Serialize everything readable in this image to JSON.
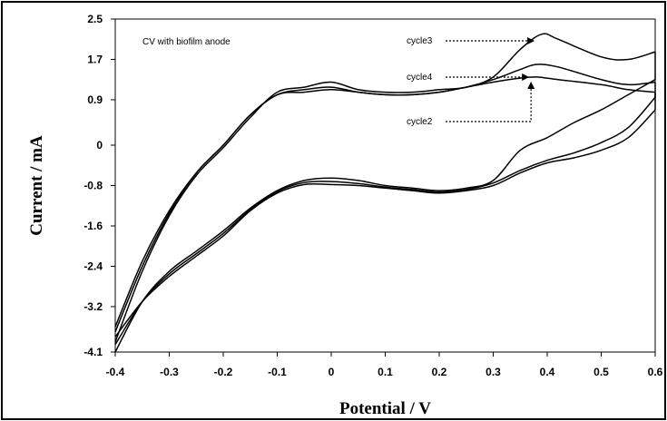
{
  "chart_data": {
    "type": "line",
    "title": "CV with biofilm anode",
    "xlabel": "Potential / V",
    "ylabel": "Current / mA",
    "xlim": [
      -0.4,
      0.6
    ],
    "ylim": [
      -4.1,
      2.5
    ],
    "x_ticks": [
      "-0.4",
      "-0.3",
      "-0.2",
      "-0.1",
      "0",
      "0.1",
      "0.2",
      "0.3",
      "0.4",
      "0.5",
      "0.6"
    ],
    "y_ticks": [
      "2.5",
      "1.7",
      "0.9",
      "0",
      "-0.8",
      "-1.6",
      "-2.4",
      "-3.2",
      "-4.1"
    ],
    "grid": false,
    "series": [
      {
        "name": "cycle2",
        "forward": [
          [
            -0.4,
            -3.6
          ],
          [
            -0.35,
            -2.3
          ],
          [
            -0.3,
            -1.3
          ],
          [
            -0.25,
            -0.55
          ],
          [
            -0.2,
            0.0
          ],
          [
            -0.15,
            0.6
          ],
          [
            -0.1,
            1.0
          ],
          [
            -0.05,
            1.05
          ],
          [
            0.0,
            1.1
          ],
          [
            0.05,
            1.05
          ],
          [
            0.1,
            1.0
          ],
          [
            0.15,
            1.0
          ],
          [
            0.2,
            1.05
          ],
          [
            0.25,
            1.15
          ],
          [
            0.3,
            1.25
          ],
          [
            0.35,
            1.33
          ],
          [
            0.38,
            1.35
          ],
          [
            0.42,
            1.3
          ],
          [
            0.5,
            1.2
          ],
          [
            0.55,
            1.1
          ],
          [
            0.6,
            1.05
          ]
        ],
        "reverse": [
          [
            0.6,
            0.7
          ],
          [
            0.55,
            0.15
          ],
          [
            0.5,
            -0.1
          ],
          [
            0.45,
            -0.25
          ],
          [
            0.4,
            -0.35
          ],
          [
            0.35,
            -0.55
          ],
          [
            0.3,
            -0.8
          ],
          [
            0.25,
            -0.9
          ],
          [
            0.2,
            -0.95
          ],
          [
            0.15,
            -0.9
          ],
          [
            0.1,
            -0.85
          ],
          [
            0.05,
            -0.8
          ],
          [
            0.0,
            -0.78
          ],
          [
            -0.05,
            -0.78
          ],
          [
            -0.1,
            -0.95
          ],
          [
            -0.15,
            -1.3
          ],
          [
            -0.2,
            -1.8
          ],
          [
            -0.25,
            -2.2
          ],
          [
            -0.3,
            -2.6
          ],
          [
            -0.35,
            -3.1
          ],
          [
            -0.4,
            -3.8
          ]
        ]
      },
      {
        "name": "cycle3",
        "forward": [
          [
            -0.4,
            -3.9
          ],
          [
            -0.35,
            -2.5
          ],
          [
            -0.3,
            -1.4
          ],
          [
            -0.25,
            -0.6
          ],
          [
            -0.2,
            -0.05
          ],
          [
            -0.15,
            0.55
          ],
          [
            -0.1,
            1.05
          ],
          [
            -0.05,
            1.15
          ],
          [
            0.0,
            1.25
          ],
          [
            0.05,
            1.1
          ],
          [
            0.1,
            1.05
          ],
          [
            0.15,
            1.05
          ],
          [
            0.2,
            1.1
          ],
          [
            0.25,
            1.15
          ],
          [
            0.3,
            1.35
          ],
          [
            0.35,
            1.9
          ],
          [
            0.39,
            2.2
          ],
          [
            0.42,
            2.1
          ],
          [
            0.5,
            1.75
          ],
          [
            0.55,
            1.7
          ],
          [
            0.6,
            1.85
          ]
        ],
        "reverse": [
          [
            0.6,
            1.3
          ],
          [
            0.55,
            1.0
          ],
          [
            0.5,
            0.7
          ],
          [
            0.45,
            0.45
          ],
          [
            0.4,
            0.15
          ],
          [
            0.35,
            -0.1
          ],
          [
            0.3,
            -0.7
          ],
          [
            0.25,
            -0.85
          ],
          [
            0.2,
            -0.9
          ],
          [
            0.15,
            -0.85
          ],
          [
            0.1,
            -0.8
          ],
          [
            0.05,
            -0.7
          ],
          [
            0.0,
            -0.65
          ],
          [
            -0.05,
            -0.7
          ],
          [
            -0.1,
            -0.9
          ],
          [
            -0.15,
            -1.25
          ],
          [
            -0.2,
            -1.7
          ],
          [
            -0.25,
            -2.1
          ],
          [
            -0.3,
            -2.5
          ],
          [
            -0.35,
            -3.1
          ],
          [
            -0.4,
            -4.1
          ]
        ]
      },
      {
        "name": "cycle4",
        "forward": [
          [
            -0.4,
            -3.7
          ],
          [
            -0.35,
            -2.4
          ],
          [
            -0.3,
            -1.35
          ],
          [
            -0.25,
            -0.55
          ],
          [
            -0.2,
            0.0
          ],
          [
            -0.15,
            0.6
          ],
          [
            -0.1,
            1.0
          ],
          [
            -0.05,
            1.1
          ],
          [
            0.0,
            1.15
          ],
          [
            0.05,
            1.05
          ],
          [
            0.1,
            1.0
          ],
          [
            0.15,
            1.0
          ],
          [
            0.2,
            1.05
          ],
          [
            0.25,
            1.15
          ],
          [
            0.3,
            1.3
          ],
          [
            0.35,
            1.5
          ],
          [
            0.38,
            1.6
          ],
          [
            0.42,
            1.55
          ],
          [
            0.5,
            1.3
          ],
          [
            0.55,
            1.2
          ],
          [
            0.6,
            1.25
          ]
        ],
        "reverse": [
          [
            0.6,
            0.95
          ],
          [
            0.55,
            0.35
          ],
          [
            0.5,
            0.05
          ],
          [
            0.45,
            -0.15
          ],
          [
            0.4,
            -0.3
          ],
          [
            0.35,
            -0.5
          ],
          [
            0.3,
            -0.75
          ],
          [
            0.25,
            -0.88
          ],
          [
            0.2,
            -0.93
          ],
          [
            0.15,
            -0.88
          ],
          [
            0.1,
            -0.83
          ],
          [
            0.05,
            -0.76
          ],
          [
            0.0,
            -0.72
          ],
          [
            -0.05,
            -0.74
          ],
          [
            -0.1,
            -0.92
          ],
          [
            -0.15,
            -1.28
          ],
          [
            -0.2,
            -1.75
          ],
          [
            -0.25,
            -2.15
          ],
          [
            -0.3,
            -2.55
          ],
          [
            -0.35,
            -3.1
          ],
          [
            -0.4,
            -3.95
          ]
        ]
      }
    ],
    "annotations": [
      {
        "text": "cycle3",
        "target": [
          0.38,
          2.2
        ]
      },
      {
        "text": "cycle4",
        "target": [
          0.37,
          1.6
        ]
      },
      {
        "text": "cycle2",
        "target": [
          0.37,
          1.35
        ]
      }
    ]
  },
  "colors": {
    "line": "#000000",
    "background": "#ffffff"
  }
}
